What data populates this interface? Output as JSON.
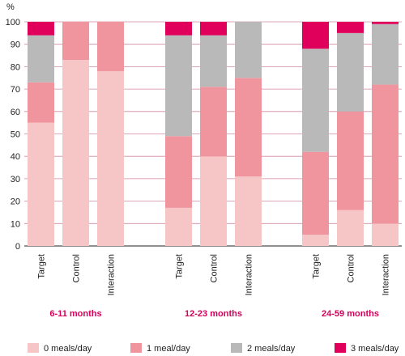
{
  "chart_data": {
    "type": "bar",
    "stacked": true,
    "ylabel": "%",
    "ylim": [
      0,
      100
    ],
    "yticks": [
      0,
      10,
      20,
      30,
      40,
      50,
      60,
      70,
      80,
      90,
      100
    ],
    "grid": true,
    "legend_position": "bottom",
    "group_label_color": "#d6005a",
    "series": [
      {
        "name": "0 meals/day",
        "color": "#f6c5c6"
      },
      {
        "name": "1 meal/day",
        "color": "#f0959e"
      },
      {
        "name": "2 meals/day",
        "color": "#b9b9b9"
      },
      {
        "name": "3 meals/day",
        "color": "#e0005b"
      }
    ],
    "groups": [
      {
        "label": "6-11 months",
        "bars": [
          {
            "category": "Target",
            "values": [
              55,
              18,
              21,
              6
            ]
          },
          {
            "category": "Control",
            "values": [
              83,
              17,
              0,
              0
            ]
          },
          {
            "category": "Interaction",
            "values": [
              78,
              22,
              0,
              0
            ]
          }
        ]
      },
      {
        "label": "12-23 months",
        "bars": [
          {
            "category": "Target",
            "values": [
              17,
              32,
              45,
              6
            ]
          },
          {
            "category": "Control",
            "values": [
              40,
              31,
              23,
              6
            ]
          },
          {
            "category": "Interaction",
            "values": [
              31,
              44,
              25,
              0
            ]
          }
        ]
      },
      {
        "label": "24-59 months",
        "bars": [
          {
            "category": "Target",
            "values": [
              5,
              37,
              46,
              12
            ]
          },
          {
            "category": "Control",
            "values": [
              16,
              44,
              35,
              5
            ]
          },
          {
            "category": "Interaction",
            "values": [
              10,
              62,
              27,
              1
            ]
          }
        ]
      }
    ]
  }
}
